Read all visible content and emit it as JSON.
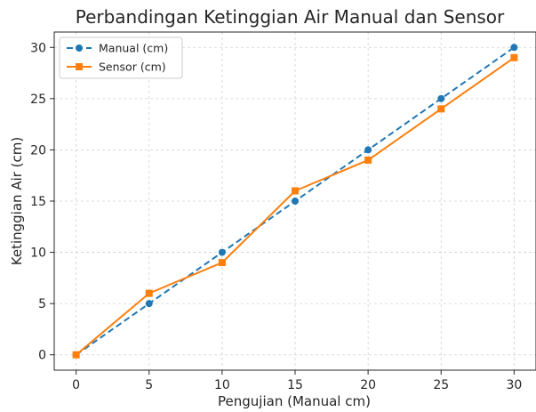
{
  "chart_data": {
    "type": "line",
    "title": "Perbandingan Ketinggian Air Manual dan Sensor",
    "xlabel": "Pengujian (Manual cm)",
    "ylabel": "Ketinggian Air (cm)",
    "x": [
      0,
      5,
      10,
      15,
      20,
      25,
      30
    ],
    "xlim": [
      -1.5,
      31.5
    ],
    "ylim": [
      -1.5,
      31.5
    ],
    "xticks": [
      0,
      5,
      10,
      15,
      20,
      25,
      30
    ],
    "yticks": [
      0,
      5,
      10,
      15,
      20,
      25,
      30
    ],
    "grid": true,
    "legend_position": "top-left",
    "series": [
      {
        "name": "Manual (cm)",
        "values": [
          0,
          5,
          10,
          15,
          20,
          25,
          30
        ],
        "color": "#1f77b4",
        "line_style": "dashed",
        "marker": "circle"
      },
      {
        "name": "Sensor (cm)",
        "values": [
          0,
          6,
          9,
          16,
          19,
          24,
          29
        ],
        "color": "#ff7f0e",
        "line_style": "solid",
        "marker": "square"
      }
    ]
  }
}
